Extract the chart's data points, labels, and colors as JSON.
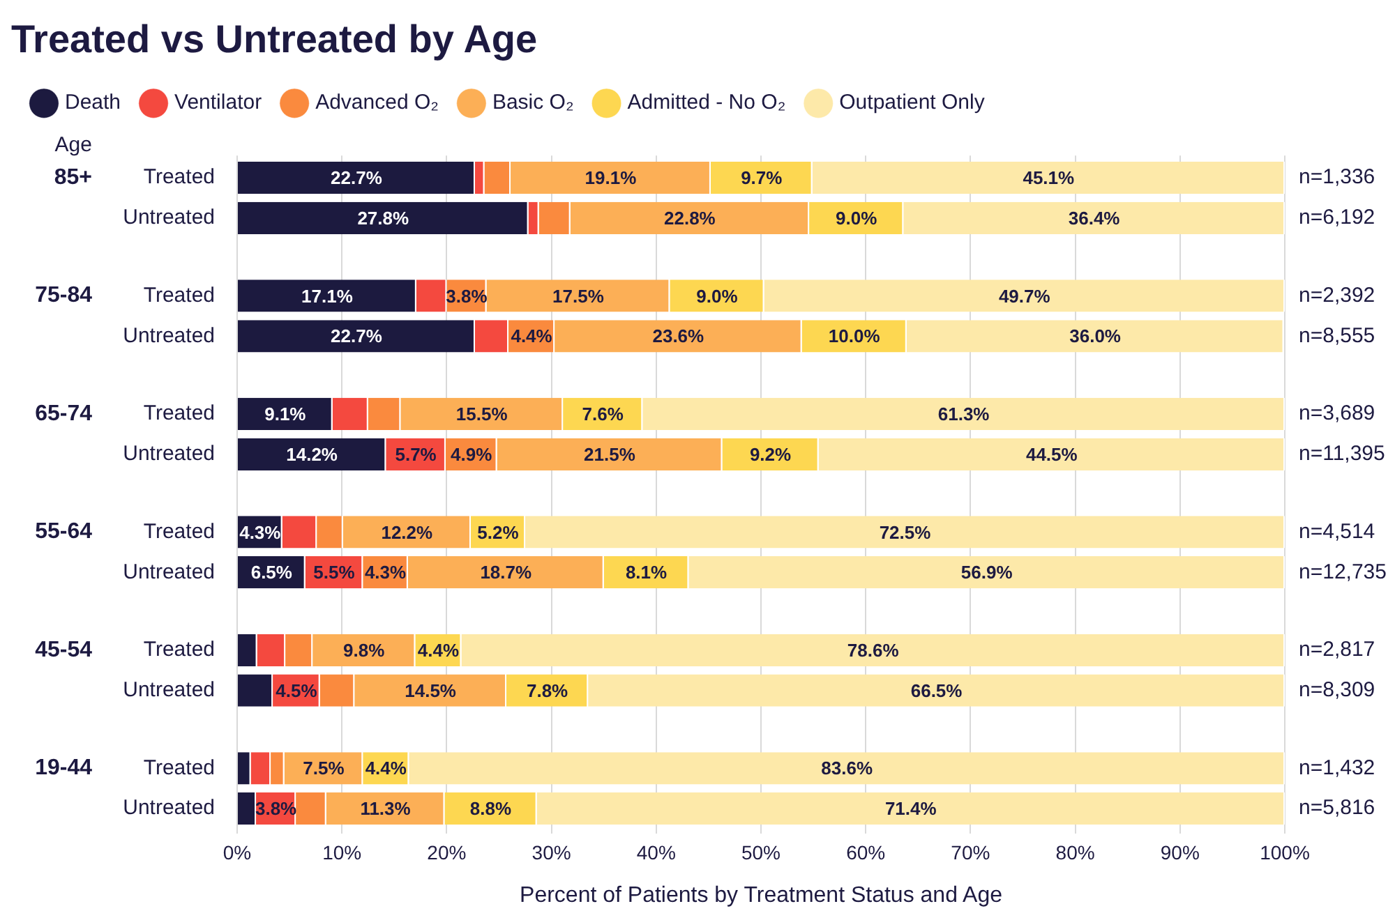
{
  "chart_data": {
    "type": "bar",
    "orientation": "horizontal",
    "stacked": true,
    "title": "Treated vs Untreated by Age",
    "xlabel": "Percent of Patients by Treatment Status and Age",
    "ylabel": "Age",
    "categories": [
      "Treated",
      "Untreated",
      "Treated",
      "Untreated",
      "Treated",
      "Untreated",
      "Treated",
      "Untreated",
      "Treated",
      "Untreated",
      "Treated",
      "Untreated"
    ],
    "series": [
      {
        "name": "Death",
        "color": "#1c1a3f",
        "values": [
          22.7,
          27.8,
          17.1,
          22.7,
          9.1,
          14.2,
          4.3,
          6.5,
          1.9,
          3.4,
          1.3,
          1.8
        ],
        "value_labels": [
          "22.7%",
          "27.8%",
          "17.1%",
          "22.7%",
          "9.1%",
          "14.2%",
          "4.3%",
          "6.5%",
          null,
          null,
          null,
          null
        ]
      },
      {
        "name": "Ventilator",
        "color": "#f4493f",
        "values": [
          0.9,
          1.0,
          2.9,
          3.2,
          3.4,
          5.7,
          3.3,
          5.5,
          2.7,
          4.5,
          1.9,
          3.8
        ],
        "value_labels": [
          null,
          null,
          null,
          null,
          null,
          "5.7%",
          null,
          "5.5%",
          null,
          "4.5%",
          null,
          "3.8%"
        ]
      },
      {
        "name": "Advanced O₂",
        "color": "#fa8a3e",
        "values": [
          2.5,
          3.0,
          3.8,
          4.4,
          3.1,
          4.9,
          2.5,
          4.3,
          2.6,
          3.3,
          1.3,
          2.9
        ],
        "value_labels": [
          null,
          null,
          "3.8%",
          "4.4%",
          null,
          "4.9%",
          null,
          "4.3%",
          null,
          null,
          null,
          null
        ]
      },
      {
        "name": "Basic O₂",
        "color": "#fcaf56",
        "values": [
          19.1,
          22.8,
          17.5,
          23.6,
          15.5,
          21.5,
          12.2,
          18.7,
          9.8,
          14.5,
          7.5,
          11.3
        ],
        "value_labels": [
          "19.1%",
          "22.8%",
          "17.5%",
          "23.6%",
          "15.5%",
          "21.5%",
          "12.2%",
          "18.7%",
          "9.8%",
          "14.5%",
          "7.5%",
          "11.3%"
        ]
      },
      {
        "name": "Admitted - No O₂",
        "color": "#fdd751",
        "values": [
          9.7,
          9.0,
          9.0,
          10.0,
          7.6,
          9.2,
          5.2,
          8.1,
          4.4,
          7.8,
          4.4,
          8.8
        ],
        "value_labels": [
          "9.7%",
          "9.0%",
          "9.0%",
          "10.0%",
          "7.6%",
          "9.2%",
          "5.2%",
          "8.1%",
          "4.4%",
          "7.8%",
          "4.4%",
          "8.8%"
        ]
      },
      {
        "name": "Outpatient Only",
        "color": "#fde9a9",
        "values": [
          45.1,
          36.4,
          49.7,
          36.0,
          61.3,
          44.5,
          72.5,
          56.9,
          78.6,
          66.5,
          83.6,
          71.4
        ],
        "value_labels": [
          "45.1%",
          "36.4%",
          "49.7%",
          "36.0%",
          "61.3%",
          "44.5%",
          "72.5%",
          "56.9%",
          "78.6%",
          "66.5%",
          "83.6%",
          "71.4%"
        ]
      }
    ],
    "xlim": [
      0,
      100
    ],
    "xticks": [
      {
        "value": 0,
        "label": "0%"
      },
      {
        "value": 10,
        "label": "10%"
      },
      {
        "value": 20,
        "label": "20%"
      },
      {
        "value": 30,
        "label": "30%"
      },
      {
        "value": 40,
        "label": "40%"
      },
      {
        "value": 50,
        "label": "50%"
      },
      {
        "value": 60,
        "label": "60%"
      },
      {
        "value": 70,
        "label": "70%"
      },
      {
        "value": 80,
        "label": "80%"
      },
      {
        "value": 90,
        "label": "90%"
      },
      {
        "value": 100,
        "label": "100%"
      }
    ],
    "grid": "x",
    "legend": "top left",
    "annotations": [
      "85+",
      "75-84",
      "65-74",
      "55-64",
      "45-54",
      "19-44",
      "n=1,336",
      "n=6,192",
      "n=2,392",
      "n=8,555",
      "n=3,689",
      "n=11,395",
      "n=4,514",
      "n=12,735",
      "n=2,817",
      "n=8,309",
      "n=1,432",
      "n=5,816"
    ]
  }
}
